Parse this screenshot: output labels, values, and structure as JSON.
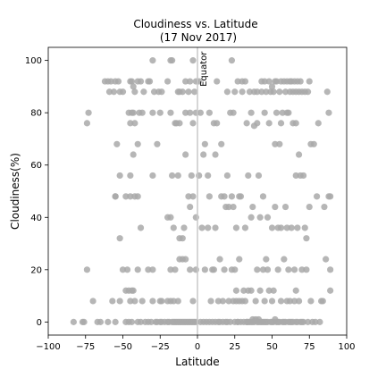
{
  "chart_data": {
    "type": "scatter",
    "title": "Cloudiness vs. Latitude",
    "subtitle": "(17 Nov 2017)",
    "xlabel": "Latitude",
    "ylabel": "Cloudiness(%)",
    "xlim": [
      -100,
      100
    ],
    "ylim": [
      -5,
      105
    ],
    "xticks": [
      -100,
      -75,
      -50,
      -25,
      0,
      25,
      50,
      75,
      100
    ],
    "yticks": [
      0,
      20,
      40,
      60,
      80,
      100
    ],
    "grid": false,
    "legend": "none",
    "marker_color": "#a9a9a9",
    "reference_line": {
      "x": 0,
      "label": "Equator",
      "color": "#c8c8c8"
    },
    "points": [
      [
        -83,
        0
      ],
      [
        -77,
        0
      ],
      [
        -76,
        0
      ],
      [
        -70,
        8
      ],
      [
        -67,
        0
      ],
      [
        -65,
        0
      ],
      [
        -60,
        0
      ],
      [
        -57,
        8
      ],
      [
        -55,
        0
      ],
      [
        -52,
        8
      ],
      [
        -50,
        20
      ],
      [
        -48,
        0
      ],
      [
        -46,
        0
      ],
      [
        -44,
        0
      ],
      [
        -42,
        8
      ],
      [
        -40,
        0
      ],
      [
        -38,
        0
      ],
      [
        -35,
        0
      ],
      [
        -33,
        0
      ],
      [
        -31,
        0
      ],
      [
        -30,
        8
      ],
      [
        -28,
        0
      ],
      [
        -27,
        0
      ],
      [
        -25,
        0
      ],
      [
        -24,
        0
      ],
      [
        -22,
        0
      ],
      [
        -20,
        0
      ],
      [
        -19,
        0
      ],
      [
        -18,
        8
      ],
      [
        -17,
        0
      ],
      [
        -16,
        0
      ],
      [
        -15,
        0
      ],
      [
        -14,
        0
      ],
      [
        -13,
        0
      ],
      [
        -12,
        0
      ],
      [
        -11,
        0
      ],
      [
        -10,
        0
      ],
      [
        -9,
        0
      ],
      [
        -8,
        0
      ],
      [
        -7,
        0
      ],
      [
        -6,
        0
      ],
      [
        -5,
        0
      ],
      [
        -4,
        0
      ],
      [
        -3,
        0
      ],
      [
        -2,
        0
      ],
      [
        -1,
        0
      ],
      [
        -74,
        20
      ],
      [
        -48,
        12
      ],
      [
        -47,
        20
      ],
      [
        -46,
        12
      ],
      [
        -45,
        8
      ],
      [
        -44,
        12
      ],
      [
        -43,
        12
      ],
      [
        -40,
        20
      ],
      [
        -37,
        8
      ],
      [
        -33,
        20
      ],
      [
        -30,
        20
      ],
      [
        -25,
        8
      ],
      [
        -24,
        8
      ],
      [
        -20,
        8
      ],
      [
        -18,
        20
      ],
      [
        -16,
        8
      ],
      [
        -15,
        20
      ],
      [
        -13,
        8
      ],
      [
        -12,
        24
      ],
      [
        -10,
        24
      ],
      [
        -8,
        24
      ],
      [
        -5,
        20
      ],
      [
        -3,
        8
      ],
      [
        -1,
        20
      ],
      [
        -73,
        80
      ],
      [
        -74,
        76
      ],
      [
        -62,
        92
      ],
      [
        -60,
        92
      ],
      [
        -59,
        88
      ],
      [
        -58,
        92
      ],
      [
        -56,
        88
      ],
      [
        -55,
        92
      ],
      [
        -53,
        92
      ],
      [
        -52,
        88
      ],
      [
        -50,
        88
      ],
      [
        -45,
        92
      ],
      [
        -44,
        92
      ],
      [
        -43,
        90
      ],
      [
        -42,
        88
      ],
      [
        -40,
        92
      ],
      [
        -38,
        92
      ],
      [
        -36,
        88
      ],
      [
        -33,
        92
      ],
      [
        -32,
        92
      ],
      [
        -29,
        88
      ],
      [
        -26,
        88
      ],
      [
        -24,
        88
      ],
      [
        -20,
        92
      ],
      [
        -13,
        88
      ],
      [
        -12,
        88
      ],
      [
        -10,
        88
      ],
      [
        -8,
        92
      ],
      [
        -6,
        88
      ],
      [
        -5,
        92
      ],
      [
        -3,
        100
      ],
      [
        -2,
        88
      ],
      [
        -1,
        92
      ],
      [
        -30,
        100
      ],
      [
        -18,
        100
      ],
      [
        -17,
        100
      ],
      [
        -54,
        68
      ],
      [
        -46,
        80
      ],
      [
        -45,
        76
      ],
      [
        -44,
        80
      ],
      [
        -43,
        80
      ],
      [
        -42,
        76
      ],
      [
        -40,
        68
      ],
      [
        -39,
        80
      ],
      [
        -37,
        80
      ],
      [
        -30,
        80
      ],
      [
        -27,
        68
      ],
      [
        -25,
        80
      ],
      [
        -18,
        80
      ],
      [
        -15,
        76
      ],
      [
        -14,
        76
      ],
      [
        -12,
        76
      ],
      [
        -8,
        80
      ],
      [
        -5,
        80
      ],
      [
        -3,
        76
      ],
      [
        -1,
        80
      ],
      [
        -52,
        56
      ],
      [
        -45,
        56
      ],
      [
        -43,
        64
      ],
      [
        -30,
        56
      ],
      [
        -17,
        56
      ],
      [
        -13,
        56
      ],
      [
        -8,
        64
      ],
      [
        -4,
        56
      ],
      [
        -55,
        48
      ],
      [
        -48,
        48
      ],
      [
        -45,
        48
      ],
      [
        -42,
        48
      ],
      [
        -40,
        48
      ],
      [
        -38,
        36
      ],
      [
        -20,
        40
      ],
      [
        -18,
        40
      ],
      [
        -16,
        36
      ],
      [
        -12,
        32
      ],
      [
        -10,
        32
      ],
      [
        -9,
        36
      ],
      [
        -6,
        48
      ],
      [
        -5,
        44
      ],
      [
        -3,
        48
      ],
      [
        -1,
        40
      ],
      [
        -52,
        32
      ],
      [
        -55,
        48
      ],
      [
        1,
        92
      ],
      [
        1,
        56
      ],
      [
        2,
        0
      ],
      [
        2,
        80
      ],
      [
        3,
        36
      ],
      [
        4,
        0
      ],
      [
        4,
        64
      ],
      [
        5,
        68
      ],
      [
        5,
        20
      ],
      [
        6,
        0
      ],
      [
        7,
        36
      ],
      [
        7,
        56
      ],
      [
        8,
        0
      ],
      [
        8,
        80
      ],
      [
        9,
        8
      ],
      [
        10,
        0
      ],
      [
        10,
        20
      ],
      [
        11,
        20
      ],
      [
        11,
        76
      ],
      [
        12,
        0
      ],
      [
        12,
        64
      ],
      [
        13,
        92
      ],
      [
        13,
        76
      ],
      [
        14,
        0
      ],
      [
        14,
        8
      ],
      [
        15,
        0
      ],
      [
        15,
        24
      ],
      [
        16,
        48
      ],
      [
        16,
        68
      ],
      [
        17,
        0
      ],
      [
        17,
        8
      ],
      [
        18,
        48
      ],
      [
        18,
        20
      ],
      [
        19,
        0
      ],
      [
        19,
        44
      ],
      [
        20,
        0
      ],
      [
        20,
        88
      ],
      [
        21,
        8
      ],
      [
        21,
        44
      ],
      [
        22,
        0
      ],
      [
        22,
        80
      ],
      [
        23,
        20
      ],
      [
        23,
        48
      ],
      [
        23,
        100
      ],
      [
        24,
        8
      ],
      [
        24,
        80
      ],
      [
        25,
        0
      ],
      [
        25,
        88
      ],
      [
        26,
        8
      ],
      [
        26,
        12
      ],
      [
        26,
        36
      ],
      [
        27,
        0
      ],
      [
        27,
        92
      ],
      [
        28,
        8
      ],
      [
        28,
        24
      ],
      [
        29,
        0
      ],
      [
        29,
        48
      ],
      [
        30,
        8
      ],
      [
        30,
        88
      ],
      [
        30,
        92
      ],
      [
        31,
        0
      ],
      [
        31,
        12
      ],
      [
        32,
        8
      ],
      [
        32,
        92
      ],
      [
        33,
        0
      ],
      [
        33,
        76
      ],
      [
        34,
        0
      ],
      [
        34,
        12
      ],
      [
        34,
        56
      ],
      [
        35,
        0
      ],
      [
        35,
        88
      ],
      [
        36,
        0
      ],
      [
        36,
        12
      ],
      [
        36,
        40
      ],
      [
        37,
        1
      ],
      [
        37,
        44
      ],
      [
        38,
        0
      ],
      [
        38,
        88
      ],
      [
        38,
        75
      ],
      [
        39,
        1
      ],
      [
        39,
        8
      ],
      [
        40,
        0
      ],
      [
        40,
        20
      ],
      [
        40,
        88
      ],
      [
        41,
        1
      ],
      [
        41,
        56
      ],
      [
        42,
        0
      ],
      [
        42,
        12
      ],
      [
        42,
        40
      ],
      [
        43,
        0
      ],
      [
        43,
        88
      ],
      [
        43,
        92
      ],
      [
        44,
        0
      ],
      [
        44,
        20
      ],
      [
        44,
        48
      ],
      [
        45,
        8
      ],
      [
        45,
        80
      ],
      [
        45,
        92
      ],
      [
        46,
        0
      ],
      [
        46,
        24
      ],
      [
        46,
        88
      ],
      [
        47,
        0
      ],
      [
        47,
        20
      ],
      [
        47,
        40
      ],
      [
        48,
        12
      ],
      [
        48,
        92
      ],
      [
        49,
        0
      ],
      [
        49,
        88
      ],
      [
        50,
        8
      ],
      [
        50,
        36
      ],
      [
        50,
        90
      ],
      [
        51,
        0
      ],
      [
        51,
        12
      ],
      [
        51,
        88
      ],
      [
        52,
        1
      ],
      [
        52,
        44
      ],
      [
        52,
        92
      ],
      [
        53,
        0
      ],
      [
        53,
        80
      ],
      [
        53,
        92
      ],
      [
        54,
        20
      ],
      [
        54,
        36
      ],
      [
        55,
        0
      ],
      [
        55,
        68
      ],
      [
        55,
        88
      ],
      [
        56,
        8
      ],
      [
        56,
        36
      ],
      [
        56,
        92
      ],
      [
        57,
        0
      ],
      [
        57,
        80
      ],
      [
        58,
        24
      ],
      [
        58,
        92
      ],
      [
        59,
        0
      ],
      [
        59,
        44
      ],
      [
        59,
        88
      ],
      [
        60,
        8
      ],
      [
        60,
        36
      ],
      [
        60,
        92
      ],
      [
        61,
        0
      ],
      [
        61,
        20
      ],
      [
        61,
        80
      ],
      [
        62,
        8
      ],
      [
        62,
        88
      ],
      [
        62,
        92
      ],
      [
        63,
        0
      ],
      [
        63,
        36
      ],
      [
        63,
        92
      ],
      [
        64,
        0
      ],
      [
        64,
        88
      ],
      [
        64,
        76
      ],
      [
        65,
        8
      ],
      [
        65,
        20
      ],
      [
        65,
        92
      ],
      [
        66,
        0
      ],
      [
        66,
        56
      ],
      [
        66,
        88
      ],
      [
        67,
        0
      ],
      [
        67,
        36
      ],
      [
        67,
        92
      ],
      [
        68,
        8
      ],
      [
        68,
        64
      ],
      [
        68,
        88
      ],
      [
        69,
        0
      ],
      [
        69,
        56
      ],
      [
        69,
        92
      ],
      [
        70,
        20
      ],
      [
        70,
        88
      ],
      [
        71,
        0
      ],
      [
        71,
        56
      ],
      [
        72,
        36
      ],
      [
        72,
        88
      ],
      [
        73,
        20
      ],
      [
        73,
        32
      ],
      [
        74,
        0
      ],
      [
        74,
        88
      ],
      [
        75,
        44
      ],
      [
        75,
        92
      ],
      [
        76,
        8
      ],
      [
        76,
        68
      ],
      [
        77,
        0
      ],
      [
        78,
        68
      ],
      [
        79,
        0
      ],
      [
        80,
        48
      ],
      [
        81,
        76
      ],
      [
        82,
        0
      ],
      [
        83,
        8
      ],
      [
        84,
        8
      ],
      [
        85,
        44
      ],
      [
        86,
        24
      ],
      [
        87,
        88
      ],
      [
        88,
        48
      ],
      [
        88,
        80
      ],
      [
        89,
        12
      ],
      [
        89,
        20
      ],
      [
        89,
        48
      ],
      [
        25,
        20
      ],
      [
        27,
        0
      ],
      [
        33,
        0
      ],
      [
        37,
        0
      ],
      [
        41,
        0
      ],
      [
        45,
        0
      ],
      [
        50,
        0
      ],
      [
        54,
        0
      ],
      [
        58,
        0
      ],
      [
        62,
        0
      ],
      [
        66,
        12
      ],
      [
        70,
        0
      ],
      [
        36,
        80
      ],
      [
        40,
        76
      ],
      [
        48,
        76
      ],
      [
        52,
        68
      ],
      [
        56,
        76
      ],
      [
        60,
        80
      ],
      [
        66,
        76
      ],
      [
        32,
        36
      ],
      [
        28,
        48
      ],
      [
        24,
        44
      ],
      [
        20,
        56
      ],
      [
        12,
        36
      ],
      [
        8,
        48
      ]
    ]
  }
}
